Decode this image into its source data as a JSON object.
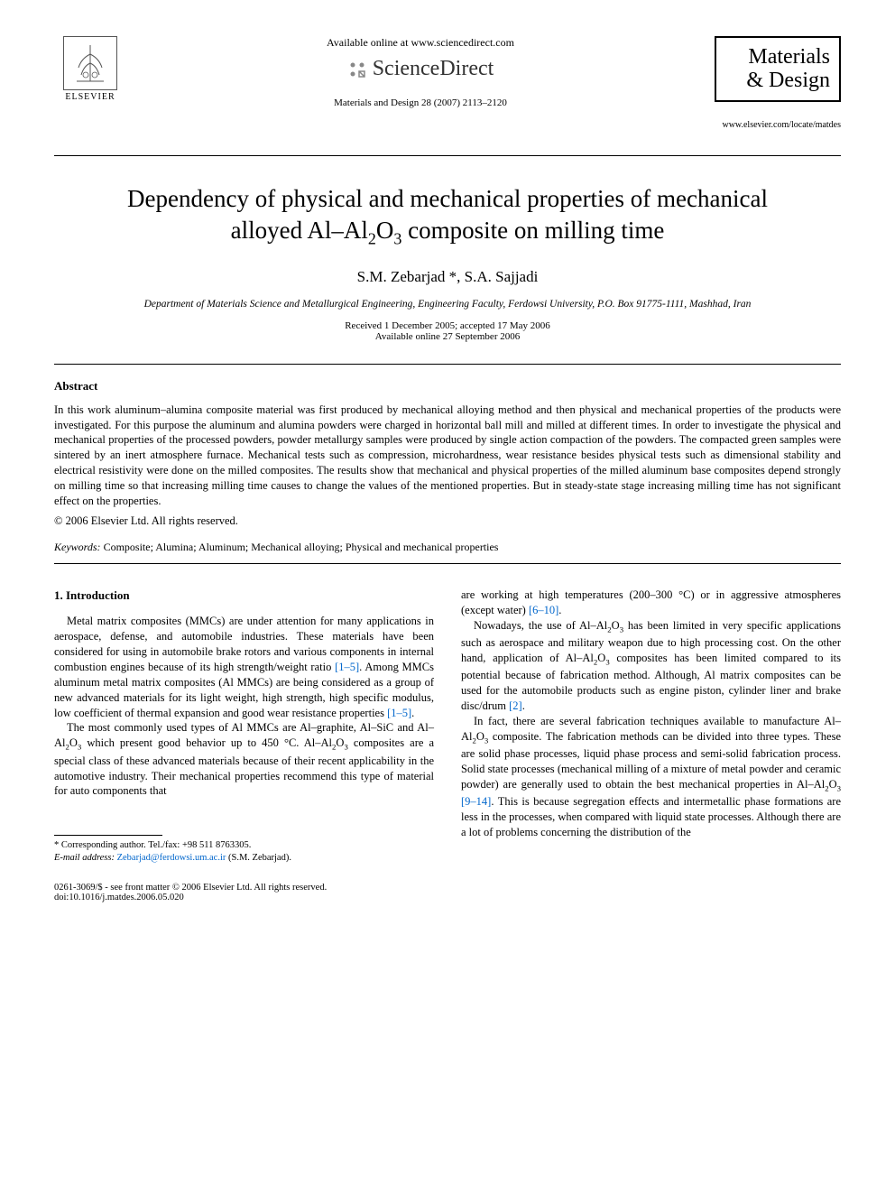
{
  "header": {
    "available_online": "Available online at www.sciencedirect.com",
    "sciencedirect": "ScienceDirect",
    "journal_ref": "Materials and Design 28 (2007) 2113–2120",
    "publisher_name": "ELSEVIER",
    "journal_name_line1": "Materials",
    "journal_name_line2": "& Design",
    "journal_url": "www.elsevier.com/locate/matdes"
  },
  "article": {
    "title_html": "Dependency of physical and mechanical properties of mechanical alloyed Al–Al<sub>2</sub>O<sub>3</sub> composite on milling time",
    "authors": "S.M. Zebarjad *, S.A. Sajjadi",
    "affiliation": "Department of Materials Science and Metallurgical Engineering, Engineering Faculty, Ferdowsi University, P.O. Box 91775-1111, Mashhad, Iran",
    "received": "Received 1 December 2005; accepted 17 May 2006",
    "available": "Available online 27 September 2006"
  },
  "abstract": {
    "heading": "Abstract",
    "text": "In this work aluminum–alumina composite material was first produced by mechanical alloying method and then physical and mechanical properties of the products were investigated. For this purpose the aluminum and alumina powders were charged in horizontal ball mill and milled at different times. In order to investigate the physical and mechanical properties of the processed powders, powder metallurgy samples were produced by single action compaction of the powders. The compacted green samples were sintered by an inert atmosphere furnace. Mechanical tests such as compression, microhardness, wear resistance besides physical tests such as dimensional stability and electrical resistivity were done on the milled composites. The results show that mechanical and physical properties of the milled aluminum base composites depend strongly on milling time so that increasing milling time causes to change the values of the mentioned properties. But in steady-state stage increasing milling time has not significant effect on the properties.",
    "copyright": "© 2006 Elsevier Ltd. All rights reserved."
  },
  "keywords": {
    "label": "Keywords:",
    "text": "Composite; Alumina; Aluminum; Mechanical alloying; Physical and mechanical properties"
  },
  "section1": {
    "heading": "1. Introduction",
    "p1_html": "Metal matrix composites (MMCs) are under attention for many applications in aerospace, defense, and automobile industries. These materials have been considered for using in automobile brake rotors and various components in internal combustion engines because of its high strength/weight ratio <span class=\"ref-link\">[1–5]</span>. Among MMCs aluminum metal matrix composites (Al MMCs) are being considered as a group of new advanced materials for its light weight, high strength, high specific modulus, low coefficient of thermal expansion and good wear resistance properties <span class=\"ref-link\">[1–5]</span>.",
    "p2_html": "The most commonly used types of Al MMCs are Al–graphite, Al–SiC and Al–Al<sub>2</sub>O<sub>3</sub> which present good behavior up to 450 °C. Al–Al<sub>2</sub>O<sub>3</sub> composites are a special class of these advanced materials because of their recent applicability in the automotive industry. Their mechanical properties recommend this type of material for auto components that",
    "p3_html": "are working at high temperatures (200–300 °C) or in aggressive atmospheres (except water) <span class=\"ref-link\">[6–10]</span>.",
    "p4_html": "Nowadays, the use of Al–Al<sub>2</sub>O<sub>3</sub> has been limited in very specific applications such as aerospace and military weapon due to high processing cost. On the other hand, application of Al–Al<sub>2</sub>O<sub>3</sub> composites has been limited compared to its potential because of fabrication method. Although, Al matrix composites can be used for the automobile products such as engine piston, cylinder liner and brake disc/drum <span class=\"ref-link\">[2]</span>.",
    "p5_html": "In fact, there are several fabrication techniques available to manufacture Al–Al<sub>2</sub>O<sub>3</sub> composite. The fabrication methods can be divided into three types. These are solid phase processes, liquid phase process and semi-solid fabrication process. Solid state processes (mechanical milling of a mixture of metal powder and ceramic powder) are generally used to obtain the best mechanical properties in Al–Al<sub>2</sub>O<sub>3</sub> <span class=\"ref-link\">[9–14]</span>. This is because segregation effects and intermetallic phase formations are less in the processes, when compared with liquid state processes. Although there are a lot of problems concerning the distribution of the"
  },
  "footnote": {
    "corr": "* Corresponding author. Tel./fax: +98 511 8763305.",
    "email_label": "E-mail address:",
    "email": "Zebarjad@ferdowsi.um.ac.ir",
    "email_attr": "(S.M. Zebarjad)."
  },
  "footer": {
    "left": "0261-3069/$ - see front matter © 2006 Elsevier Ltd. All rights reserved.",
    "doi": "doi:10.1016/j.matdes.2006.05.020"
  },
  "colors": {
    "link": "#0066cc",
    "text": "#000000",
    "background": "#ffffff"
  }
}
